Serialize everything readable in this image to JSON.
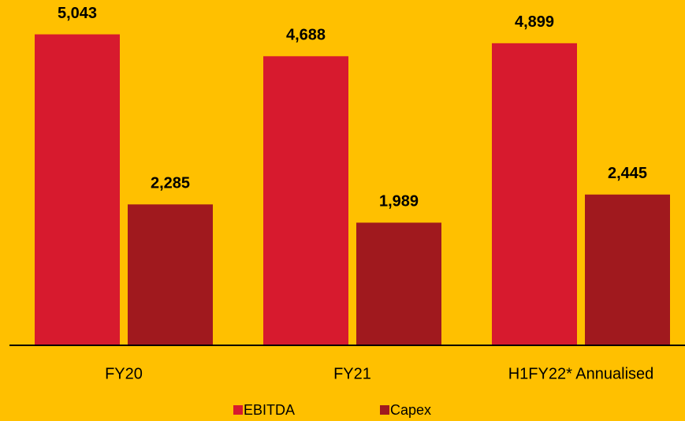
{
  "chart_data": {
    "type": "bar",
    "categories": [
      "FY20",
      "FY21",
      "H1FY22* Annualised"
    ],
    "series": [
      {
        "name": "EBITDA",
        "color": "#d71a2e",
        "values": [
          5043,
          4688,
          4899
        ],
        "value_labels": [
          "5,043",
          "4,688",
          "4,899"
        ]
      },
      {
        "name": "Capex",
        "color": "#a0191e",
        "values": [
          2285,
          1989,
          2445
        ],
        "value_labels": [
          "2,285",
          "1,989",
          "2,445"
        ]
      }
    ],
    "ylim": [
      0,
      5600
    ],
    "legend": "bottom"
  }
}
